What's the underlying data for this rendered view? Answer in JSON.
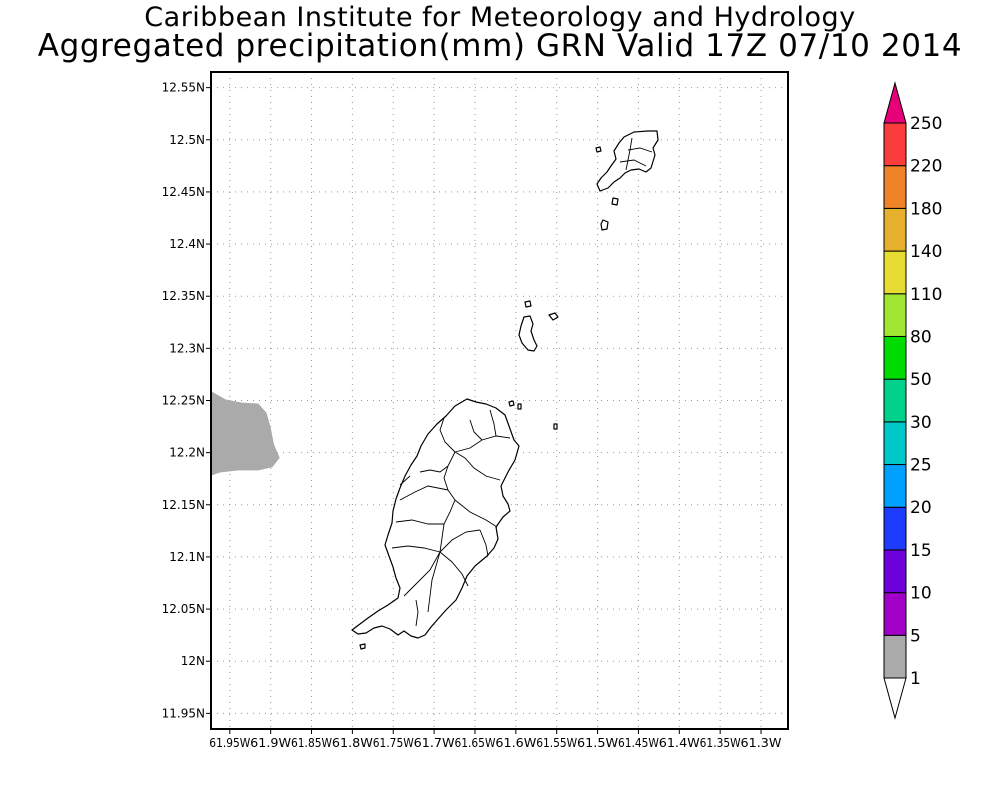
{
  "header": {
    "line1": "Caribbean Institute for Meteorology and Hydrology",
    "line2": "Aggregated precipitation(mm) GRN Valid 17Z 07/10 2014"
  },
  "map": {
    "lat_range": [
      11.935,
      12.565
    ],
    "lon_range": [
      -61.973,
      -61.267
    ],
    "lat_ticks": [
      {
        "value": 12.55,
        "label": "12.55N"
      },
      {
        "value": 12.5,
        "label": "12.5N"
      },
      {
        "value": 12.45,
        "label": "12.45N"
      },
      {
        "value": 12.4,
        "label": "12.4N"
      },
      {
        "value": 12.35,
        "label": "12.35N"
      },
      {
        "value": 12.3,
        "label": "12.3N"
      },
      {
        "value": 12.25,
        "label": "12.25N"
      },
      {
        "value": 12.2,
        "label": "12.2N"
      },
      {
        "value": 12.15,
        "label": "12.15N"
      },
      {
        "value": 12.1,
        "label": "12.1N"
      },
      {
        "value": 12.05,
        "label": "12.05N"
      },
      {
        "value": 12.0,
        "label": "12N"
      },
      {
        "value": 11.95,
        "label": "11.95N"
      }
    ],
    "lon_ticks": [
      {
        "value": -61.95,
        "label": "61.95W"
      },
      {
        "value": -61.9,
        "label": "61.9W"
      },
      {
        "value": -61.85,
        "label": "61.85W"
      },
      {
        "value": -61.8,
        "label": "61.8W"
      },
      {
        "value": -61.75,
        "label": "61.75W"
      },
      {
        "value": -61.7,
        "label": "61.7W"
      },
      {
        "value": -61.65,
        "label": "61.65W"
      },
      {
        "value": -61.6,
        "label": "61.6W"
      },
      {
        "value": -61.55,
        "label": "61.55W"
      },
      {
        "value": -61.5,
        "label": "61.5W"
      },
      {
        "value": -61.45,
        "label": "61.45W"
      },
      {
        "value": -61.4,
        "label": "61.4W"
      },
      {
        "value": -61.35,
        "label": "61.35W"
      },
      {
        "value": -61.3,
        "label": "61.3W"
      }
    ],
    "grid": true,
    "precip_area": {
      "class": "1-5 mm",
      "color": "#aaaaaa",
      "outline": [
        [
          -61.973,
          12.259
        ],
        [
          -61.955,
          12.251
        ],
        [
          -61.935,
          12.248
        ],
        [
          -61.915,
          12.247
        ],
        [
          -61.905,
          12.238
        ],
        [
          -61.9,
          12.224
        ],
        [
          -61.896,
          12.208
        ],
        [
          -61.889,
          12.195
        ],
        [
          -61.898,
          12.186
        ],
        [
          -61.915,
          12.183
        ],
        [
          -61.94,
          12.183
        ],
        [
          -61.962,
          12.181
        ],
        [
          -61.973,
          12.178
        ]
      ]
    }
  },
  "colorbar": {
    "boundaries": [
      "1",
      "5",
      "10",
      "15",
      "20",
      "25",
      "30",
      "50",
      "80",
      "110",
      "140",
      "180",
      "220",
      "250"
    ],
    "colors": [
      "#ffffff",
      "#aaaaaa",
      "#a000c8",
      "#6e00dc",
      "#1e3cff",
      "#00a0ff",
      "#00c8c8",
      "#00d28c",
      "#00dc00",
      "#a0e632",
      "#e6dc32",
      "#e6af2d",
      "#f08228",
      "#fa3c3c",
      "#e6007a"
    ]
  }
}
